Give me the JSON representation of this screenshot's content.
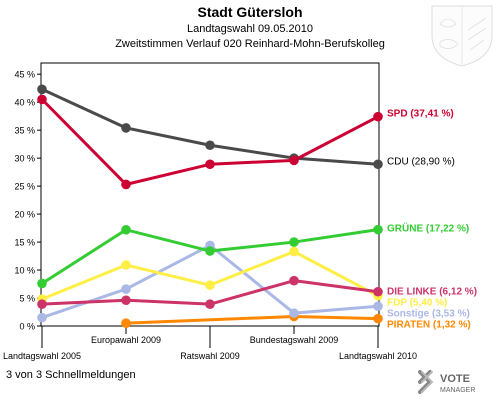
{
  "header": {
    "title": "Stadt Gütersloh",
    "subtitle": "Landtagswahl 09.05.2010",
    "subtitle2": "Zweitstimmen Verlauf 020 Reinhard-Mohn-Berufskolleg"
  },
  "footer": {
    "status": "3 von 3 Schnellmeldungen"
  },
  "brand": {
    "line1": "VOTE",
    "line2": "MANAGER"
  },
  "chart_data": {
    "type": "line",
    "title": "Stadt Gütersloh",
    "x": [
      "Landtagswahl 2005",
      "Europawahl 2009",
      "Ratswahl 2009",
      "Bundestagswahl 2009",
      "Landtagswahl 2010"
    ],
    "ylim": [
      0,
      47
    ],
    "yticks": [
      0,
      5,
      10,
      15,
      20,
      25,
      30,
      35,
      40,
      45
    ],
    "ytick_labels": [
      "0 %",
      "5 %",
      "10 %",
      "15 %",
      "20 %",
      "25 %",
      "30 %",
      "35 %",
      "40 %",
      "45 %"
    ],
    "grid": false,
    "series": [
      {
        "name": "SPD",
        "label": "SPD (37,41 %)",
        "color": "#cc0033",
        "values": [
          40.5,
          25.3,
          28.9,
          29.6,
          37.41
        ]
      },
      {
        "name": "CDU",
        "label": "CDU (28,90 %)",
        "color": "#4a4a4a",
        "values": [
          42.3,
          35.4,
          32.3,
          30.0,
          28.9
        ]
      },
      {
        "name": "GRÜNE",
        "label": "GRÜNE (17,22 %)",
        "color": "#33cc33",
        "values": [
          7.6,
          17.2,
          13.4,
          15.0,
          17.22
        ]
      },
      {
        "name": "DIE LINKE",
        "label": "DIE LINKE (6,12 %)",
        "color": "#cc3366",
        "values": [
          3.9,
          4.6,
          3.9,
          8.1,
          6.12
        ]
      },
      {
        "name": "FDP",
        "label": "FDP (5,40 %)",
        "color": "#ffee44",
        "values": [
          4.8,
          10.9,
          7.3,
          13.3,
          5.4
        ]
      },
      {
        "name": "Sonstige",
        "label": "Sonstige (3,53 %)",
        "color": "#aab8e6",
        "values": [
          1.5,
          6.6,
          14.4,
          2.3,
          3.53
        ]
      },
      {
        "name": "PIRATEN",
        "label": "PIRATEN (1,32 %)",
        "color": "#ff8800",
        "values": [
          null,
          0.5,
          null,
          1.7,
          1.32
        ]
      }
    ]
  }
}
